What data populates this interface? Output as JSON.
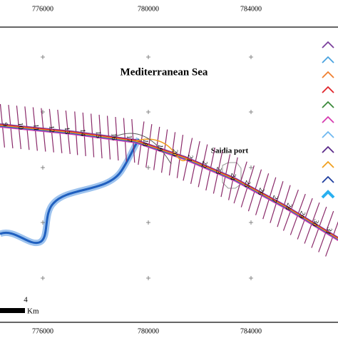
{
  "map": {
    "title": "Mediterranean Sea",
    "port_label": "Saidia port",
    "x_ticks_top": [
      776000,
      780000,
      784000
    ],
    "x_ticks_bottom": [
      776000,
      780000,
      784000
    ],
    "scale": {
      "value": "4",
      "unit": "Km"
    },
    "transect_labels": [
      "9",
      "10",
      "11",
      "12",
      "13",
      "14",
      "15",
      "16",
      "17",
      "18",
      "19",
      "20",
      "21",
      "22",
      "23",
      "24",
      "25",
      "26",
      "27",
      "28",
      "29",
      "30",
      "31"
    ]
  }
}
